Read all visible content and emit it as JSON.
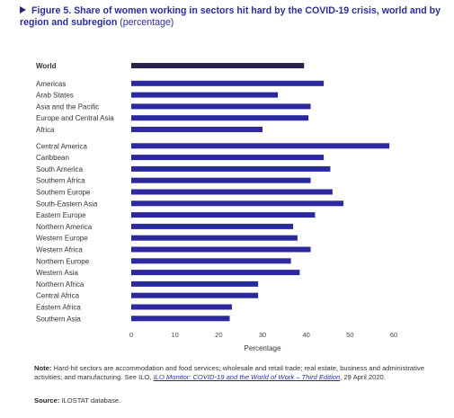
{
  "figure": {
    "title_bold": "Figure 5. Share of women working in sectors hit hard by the COVID-19 crisis, world and by region and subregion",
    "title_suffix": "(percentage)",
    "note_label": "Note:",
    "note_text": "Hard-hit sectors are accommodation and food services; wholesale and retail trade; real estate, business and administrative activities; and manufacturing. See ILO,",
    "note_link": "ILO Monitor: COVID-19 and the World of Work – Third Edition",
    "note_date": ", 29 April 2020.",
    "source_label": "Source:",
    "source_text": "ILOSTAT database."
  },
  "colors": {
    "world_bar": "#26244e",
    "region_bar": "#2a2a9e",
    "title": "#2c2c9a"
  },
  "chart_data": {
    "type": "bar",
    "orientation": "horizontal",
    "xlabel": "Percentage",
    "xlim": [
      0,
      60
    ],
    "xticks": [
      0,
      10,
      20,
      30,
      40,
      50,
      60
    ],
    "grid": false,
    "categories": [
      {
        "label": "World",
        "value": 39.5,
        "group": "world"
      },
      {
        "label": "Americas",
        "value": 44.0,
        "group": "region"
      },
      {
        "label": "Arab States",
        "value": 33.5,
        "group": "region"
      },
      {
        "label": "Asia and the Pacific",
        "value": 41.0,
        "group": "region"
      },
      {
        "label": "Europe and Central Asia",
        "value": 40.5,
        "group": "region"
      },
      {
        "label": "Africa",
        "value": 30.0,
        "group": "region"
      },
      {
        "label": "Central America",
        "value": 59.0,
        "group": "subregion"
      },
      {
        "label": "Caribbean",
        "value": 44.0,
        "group": "subregion"
      },
      {
        "label": "South America",
        "value": 45.5,
        "group": "subregion"
      },
      {
        "label": "Southern Africa",
        "value": 41.0,
        "group": "subregion"
      },
      {
        "label": "Southern Europe",
        "value": 46.0,
        "group": "subregion"
      },
      {
        "label": "South-Eastern Asia",
        "value": 48.5,
        "group": "subregion"
      },
      {
        "label": "Eastern Europe",
        "value": 42.0,
        "group": "subregion"
      },
      {
        "label": "Northern America",
        "value": 37.0,
        "group": "subregion"
      },
      {
        "label": "Western Europe",
        "value": 38.0,
        "group": "subregion"
      },
      {
        "label": "Western Africa",
        "value": 41.0,
        "group": "subregion"
      },
      {
        "label": "Northern Europe",
        "value": 36.5,
        "group": "subregion"
      },
      {
        "label": "Western Asia",
        "value": 38.5,
        "group": "subregion"
      },
      {
        "label": "Northern Africa",
        "value": 29.0,
        "group": "subregion"
      },
      {
        "label": "Central Africa",
        "value": 29.0,
        "group": "subregion"
      },
      {
        "label": "Eastern Africa",
        "value": 23.0,
        "group": "subregion"
      },
      {
        "label": "Southern Asia",
        "value": 22.5,
        "group": "subregion"
      }
    ]
  }
}
